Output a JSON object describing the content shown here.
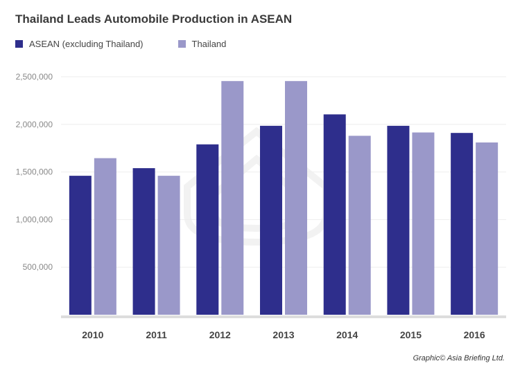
{
  "title": "Thailand Leads Automobile Production in ASEAN",
  "credit": "Graphic© Asia Briefing Ltd.",
  "colors": {
    "asean": "#2e2e8c",
    "thailand": "#9a98c9",
    "grid": "#eeeeee",
    "axis": "#dddddd"
  },
  "chart_data": {
    "type": "bar",
    "title": "Thailand Leads Automobile Production in ASEAN",
    "categories": [
      "2010",
      "2011",
      "2012",
      "2013",
      "2014",
      "2015",
      "2016"
    ],
    "series": [
      {
        "name": "ASEAN (excluding Thailand)",
        "color": "#2e2e8c",
        "values": [
          1460000,
          1540000,
          1790000,
          1985000,
          2105000,
          1985000,
          1910000
        ]
      },
      {
        "name": "Thailand",
        "color": "#9a98c9",
        "values": [
          1645000,
          1460000,
          2455000,
          2455000,
          1880000,
          1915000,
          1810000
        ]
      }
    ],
    "yticks": [
      "500,000",
      "1,000,000",
      "1,500,000",
      "2,000,000",
      "2,500,000"
    ],
    "ytick_values": [
      500000,
      1000000,
      1500000,
      2000000,
      2500000
    ],
    "ylim": [
      0,
      2500000
    ],
    "grid": true,
    "legend_position": "top-left",
    "xlabel": "",
    "ylabel": ""
  }
}
